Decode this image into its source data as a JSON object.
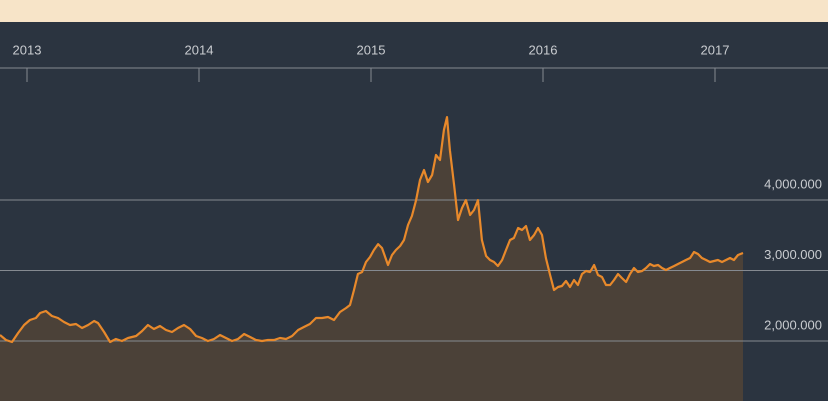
{
  "chart_data": {
    "type": "area",
    "x": [
      2012.843,
      2012.878,
      2012.913,
      2012.948,
      2012.983,
      2013.017,
      2013.052,
      2013.076,
      2013.11,
      2013.145,
      2013.18,
      2013.215,
      2013.25,
      2013.285,
      2013.32,
      2013.355,
      2013.39,
      2013.413,
      2013.448,
      2013.483,
      2013.517,
      2013.552,
      2013.587,
      2013.634,
      2013.669,
      2013.703,
      2013.738,
      2013.773,
      2013.808,
      2013.843,
      2013.878,
      2013.913,
      2013.948,
      2013.983,
      2014.017,
      2014.052,
      2014.087,
      2014.122,
      2014.157,
      2014.192,
      2014.227,
      2014.262,
      2014.297,
      2014.331,
      2014.366,
      2014.401,
      2014.436,
      2014.471,
      2014.506,
      2014.541,
      2014.576,
      2014.61,
      2014.645,
      2014.68,
      2014.715,
      2014.75,
      2014.785,
      2014.82,
      2014.855,
      2014.878,
      2014.901,
      2014.924,
      2014.948,
      2014.971,
      2014.994,
      2015.017,
      2015.041,
      2015.064,
      2015.099,
      2015.122,
      2015.145,
      2015.169,
      2015.192,
      2015.215,
      2015.238,
      2015.262,
      2015.285,
      2015.308,
      2015.331,
      2015.355,
      2015.378,
      2015.401,
      2015.424,
      2015.442,
      2015.459,
      2015.483,
      2015.506,
      2015.529,
      2015.552,
      2015.576,
      2015.599,
      2015.622,
      2015.645,
      2015.669,
      2015.692,
      2015.715,
      2015.738,
      2015.762,
      2015.785,
      2015.808,
      2015.831,
      2015.855,
      2015.878,
      2015.901,
      2015.924,
      2015.948,
      2015.971,
      2015.994,
      2016.017,
      2016.041,
      2016.064,
      2016.087,
      2016.11,
      2016.134,
      2016.157,
      2016.18,
      2016.203,
      2016.227,
      2016.25,
      2016.273,
      2016.297,
      2016.32,
      2016.343,
      2016.366,
      2016.39,
      2016.413,
      2016.436,
      2016.459,
      2016.483,
      2016.506,
      2016.529,
      2016.552,
      2016.576,
      2016.599,
      2016.622,
      2016.645,
      2016.669,
      2016.692,
      2016.715,
      2016.738,
      2016.762,
      2016.785,
      2016.808,
      2016.831,
      2016.855,
      2016.878,
      2016.901,
      2016.924,
      2016.948,
      2016.971,
      2016.994,
      2017.017,
      2017.041,
      2017.064,
      2017.087,
      2017.11,
      2017.134,
      2017.163
    ],
    "values": [
      2085,
      2014,
      1986,
      2113,
      2227,
      2298,
      2326,
      2397,
      2425,
      2355,
      2326,
      2269,
      2227,
      2241,
      2184,
      2227,
      2284,
      2255,
      2128,
      1986,
      2028,
      2000,
      2043,
      2071,
      2142,
      2227,
      2170,
      2213,
      2156,
      2128,
      2184,
      2227,
      2170,
      2071,
      2043,
      2000,
      2028,
      2085,
      2043,
      2000,
      2028,
      2099,
      2057,
      2014,
      2000,
      2014,
      2014,
      2043,
      2028,
      2071,
      2156,
      2199,
      2241,
      2326,
      2326,
      2340,
      2298,
      2411,
      2468,
      2510,
      2723,
      2950,
      2978,
      3120,
      3191,
      3290,
      3375,
      3319,
      3078,
      3220,
      3290,
      3347,
      3432,
      3645,
      3773,
      3999,
      4283,
      4425,
      4255,
      4354,
      4638,
      4567,
      4992,
      5176,
      4708,
      4212,
      3716,
      3886,
      3999,
      3787,
      3858,
      3999,
      3432,
      3205,
      3149,
      3120,
      3064,
      3149,
      3290,
      3432,
      3461,
      3602,
      3574,
      3631,
      3432,
      3503,
      3602,
      3503,
      3177,
      2936,
      2723,
      2766,
      2780,
      2851,
      2766,
      2865,
      2794,
      2950,
      2993,
      2978,
      3078,
      2936,
      2908,
      2794,
      2794,
      2865,
      2950,
      2894,
      2837,
      2950,
      3035,
      2978,
      2993,
      3035,
      3092,
      3064,
      3078,
      3035,
      3007,
      3035,
      3064,
      3092,
      3120,
      3149,
      3177,
      3262,
      3234,
      3177,
      3149,
      3120,
      3134,
      3149,
      3120,
      3149,
      3177,
      3149,
      3220,
      3248
    ],
    "color": "#e8892b",
    "area_color": "#4b4138",
    "xlim": [
      2012.843,
      2017.657
    ],
    "xticks": [
      2013,
      2014,
      2015,
      2016,
      2017
    ],
    "ylim": [
      1149,
      5872
    ],
    "yticks": [
      {
        "value": 2000,
        "label": "2,000.000"
      },
      {
        "value": 3000,
        "label": "3,000.000"
      },
      {
        "value": 4000,
        "label": "4,000.000"
      }
    ],
    "grid": true
  }
}
